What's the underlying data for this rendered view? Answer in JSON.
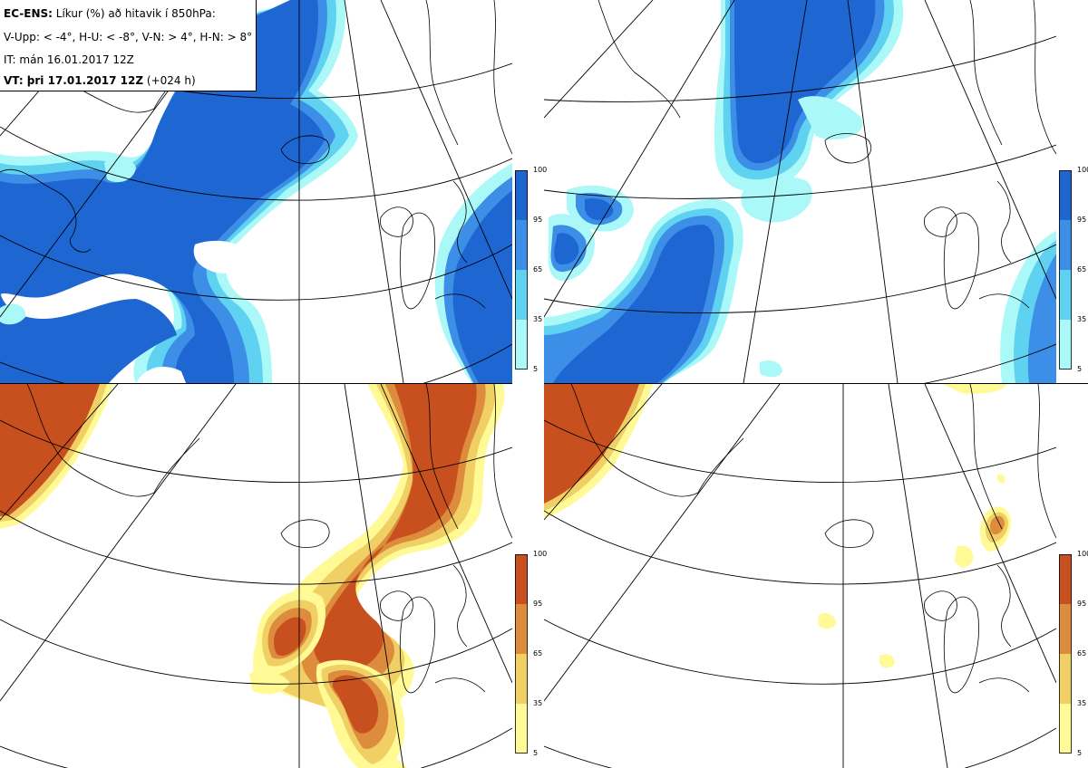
{
  "header": {
    "line1_bold": "EC-ENS:",
    "line1_rest": "Líkur (%) að hitavik í 850hPa:",
    "line2": "V-Upp: < -4°, H-U: < -8°, V-N: > 4°, H-N: > 8°",
    "line3": "IT: mán 16.01.2017 12Z",
    "line4_bold": "VT: þri 17.01.2017 12Z",
    "line4_rest": "(+024 h)"
  },
  "colorbars": {
    "cold": {
      "ticks": [
        "100",
        "95",
        "65",
        "35",
        "5"
      ],
      "colors": [
        "#1e66d2",
        "#3c8ee6",
        "#5ed2f0",
        "#aaf8f8"
      ]
    },
    "warm": {
      "ticks": [
        "100",
        "95",
        "65",
        "35",
        "5"
      ],
      "colors": [
        "#c8501e",
        "#dc8c3c",
        "#f0d064",
        "#fffa96"
      ]
    }
  },
  "panels": [
    {
      "name": "panel-upper-left",
      "variable": "V-Upp",
      "shading": "cold"
    },
    {
      "name": "panel-upper-right",
      "variable": "H-U",
      "shading": "cold"
    },
    {
      "name": "panel-lower-left",
      "variable": "V-N",
      "shading": "warm"
    },
    {
      "name": "panel-lower-right",
      "variable": "H-N",
      "shading": "warm"
    }
  ]
}
